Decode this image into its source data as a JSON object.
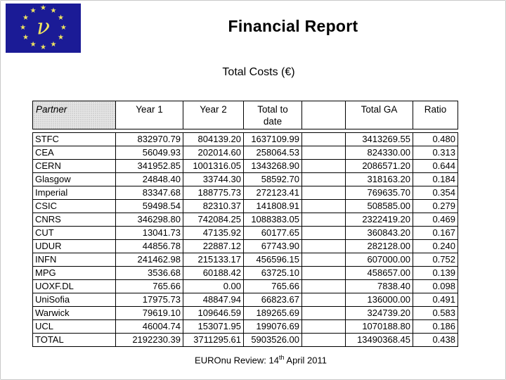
{
  "logo": {
    "name": "euronu-eu-flag",
    "symbol": "ν",
    "star_glyph": "★",
    "star_count": 12,
    "flag_color": "#1b1b96",
    "star_color": "#f0e55f"
  },
  "title": "Financial Report",
  "subtitle": "Total Costs (€)",
  "table": {
    "columns": [
      "Partner",
      "Year 1",
      "Year 2",
      "Total to\ndate",
      "",
      "Total GA",
      "Ratio"
    ],
    "rows": [
      [
        "STFC",
        "832970.79",
        "804139.20",
        "1637109.99",
        "",
        "3413269.55",
        "0.480"
      ],
      [
        "CEA",
        "56049.93",
        "202014.60",
        "258064.53",
        "",
        "824330.00",
        "0.313"
      ],
      [
        "CERN",
        "341952.85",
        "1001316.05",
        "1343268.90",
        "",
        "2086571.20",
        "0.644"
      ],
      [
        "Glasgow",
        "24848.40",
        "33744.30",
        "58592.70",
        "",
        "318163.20",
        "0.184"
      ],
      [
        "Imperial",
        "83347.68",
        "188775.73",
        "272123.41",
        "",
        "769635.70",
        "0.354"
      ],
      [
        "CSIC",
        "59498.54",
        "82310.37",
        "141808.91",
        "",
        "508585.00",
        "0.279"
      ],
      [
        "CNRS",
        "346298.80",
        "742084.25",
        "1088383.05",
        "",
        "2322419.20",
        "0.469"
      ],
      [
        "CUT",
        "13041.73",
        "47135.92",
        "60177.65",
        "",
        "360843.20",
        "0.167"
      ],
      [
        "UDUR",
        "44856.78",
        "22887.12",
        "67743.90",
        "",
        "282128.00",
        "0.240"
      ],
      [
        "INFN",
        "241462.98",
        "215133.17",
        "456596.15",
        "",
        "607000.00",
        "0.752"
      ],
      [
        "MPG",
        "3536.68",
        "60188.42",
        "63725.10",
        "",
        "458657.00",
        "0.139"
      ],
      [
        "UOXF.DL",
        "765.66",
        "0.00",
        "765.66",
        "",
        "7838.40",
        "0.098"
      ],
      [
        "UniSofia",
        "17975.73",
        "48847.94",
        "66823.67",
        "",
        "136000.00",
        "0.491"
      ],
      [
        "Warwick",
        "79619.10",
        "109646.59",
        "189265.69",
        "",
        "324739.20",
        "0.583"
      ],
      [
        "UCL",
        "46004.74",
        "153071.95",
        "199076.69",
        "",
        "1070188.80",
        "0.186"
      ],
      [
        "TOTAL",
        "2192230.39",
        "3711295.61",
        "5903526.00",
        "",
        "13490368.45",
        "0.438"
      ]
    ]
  },
  "footer": {
    "prefix": "EUROnu Review: 14",
    "superscript": "th",
    "suffix": " April 2011"
  }
}
